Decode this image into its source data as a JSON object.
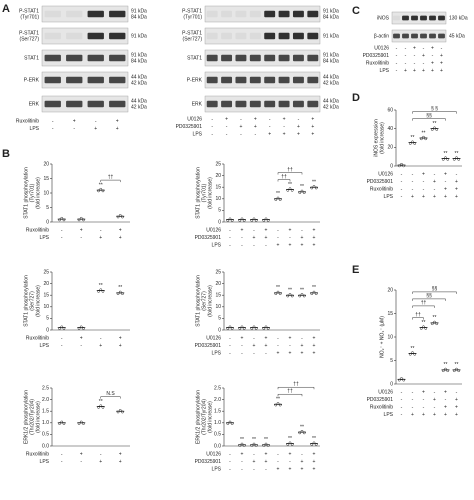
{
  "panel_labels": [
    "A",
    "B",
    "C",
    "D",
    "E"
  ],
  "blots": [
    {
      "rows": [
        {
          "label": [
            "P-STAT1",
            "(Tyr701)"
          ],
          "kda": [
            "91 kDa",
            "84 kDa"
          ]
        },
        {
          "label": [
            "P-STAT1",
            "(Ser727)"
          ],
          "kda": [
            "91 kDa"
          ]
        },
        {
          "label": [
            "STAT1"
          ],
          "kda": [
            "91 kDa",
            "84 kDa"
          ]
        },
        {
          "label": [
            "P-ERK"
          ],
          "kda": [
            "44 kDa",
            "42 kDa"
          ]
        },
        {
          "label": [
            "ERK"
          ],
          "kda": [
            "44 kDa",
            "42 kDa"
          ]
        }
      ],
      "conditions": [
        {
          "label": "Ruxolitinib",
          "signs": [
            "-",
            "+",
            "-",
            "+"
          ]
        },
        {
          "label": "LPS",
          "signs": [
            "-",
            "-",
            "+",
            "+"
          ]
        }
      ]
    },
    {
      "rows": [
        {
          "label": [
            "P-STAT1",
            "(Tyr701)"
          ],
          "kda": [
            "91 kDa",
            "84 kDa"
          ]
        },
        {
          "label": [
            "P-STAT1",
            "(Ser727)"
          ],
          "kda": [
            "91 kDa"
          ]
        },
        {
          "label": [
            "STAT1"
          ],
          "kda": [
            "91 kDa",
            "84 kDa"
          ]
        },
        {
          "label": [
            "P-ERK"
          ],
          "kda": [
            "44 kDa",
            "42 kDa"
          ]
        },
        {
          "label": [
            "ERK"
          ],
          "kda": [
            "44 kDa",
            "42 kDa"
          ]
        }
      ],
      "conditions": [
        {
          "label": "U0126",
          "signs": [
            "-",
            "+",
            "-",
            "+",
            "-",
            "+",
            "-",
            "+"
          ]
        },
        {
          "label": "PD0325901",
          "signs": [
            "-",
            "-",
            "+",
            "+",
            "-",
            "-",
            "+",
            "+"
          ]
        },
        {
          "label": "LPS",
          "signs": [
            "-",
            "-",
            "-",
            "-",
            "+",
            "+",
            "+",
            "+"
          ]
        }
      ]
    },
    {
      "rows": [
        {
          "label": [
            "iNOS"
          ],
          "kda": [
            "130 kDa"
          ]
        },
        {
          "label": [
            "β-actin"
          ],
          "kda": [
            "45 kDa"
          ]
        }
      ],
      "conditions": [
        {
          "label": "U0126",
          "signs": [
            "-",
            "-",
            "+",
            "-",
            "+",
            "-"
          ]
        },
        {
          "label": "PD0325901",
          "signs": [
            "-",
            "-",
            "-",
            "+",
            "-",
            "+"
          ]
        },
        {
          "label": "Ruxolitinib",
          "signs": [
            "-",
            "-",
            "-",
            "-",
            "+",
            "+"
          ]
        },
        {
          "label": "LPS",
          "signs": [
            "-",
            "+",
            "+",
            "+",
            "+",
            "+"
          ]
        }
      ]
    }
  ],
  "chart_data": [
    {
      "type": "dot",
      "y_label": [
        "STAT1 phosphorylation",
        "(Tyr701)",
        "(fold increase)"
      ],
      "ylim": [
        0,
        20
      ],
      "yticks": [
        0,
        5,
        10,
        15,
        20
      ],
      "values": [
        1,
        1,
        11,
        2
      ],
      "marks": [
        null,
        null,
        "**",
        null
      ],
      "brackets": [
        "††"
      ],
      "conditions": [
        {
          "label": "Ruxolitinib",
          "signs": [
            "-",
            "+",
            "-",
            "+"
          ]
        },
        {
          "label": "LPS",
          "signs": [
            "-",
            "-",
            "+",
            "+"
          ]
        }
      ]
    },
    {
      "type": "dot",
      "y_label": [
        "STAT1 phosphorylation",
        "(Tyr701)",
        "(fold increase)"
      ],
      "ylim": [
        0,
        25
      ],
      "yticks": [
        0,
        5,
        10,
        15,
        20,
        25
      ],
      "values": [
        1,
        1,
        1,
        1,
        10,
        14,
        13,
        15
      ],
      "marks": [
        null,
        null,
        null,
        null,
        "**",
        "**",
        "**",
        "**"
      ],
      "brackets": [
        "††",
        "††"
      ],
      "conditions": [
        {
          "label": "U0126",
          "signs": [
            "-",
            "+",
            "-",
            "+",
            "-",
            "+",
            "-",
            "+"
          ]
        },
        {
          "label": "PD0325901",
          "signs": [
            "-",
            "-",
            "+",
            "+",
            "-",
            "-",
            "+",
            "+"
          ]
        },
        {
          "label": "LPS",
          "signs": [
            "-",
            "-",
            "-",
            "-",
            "+",
            "+",
            "+",
            "+"
          ]
        }
      ]
    },
    {
      "type": "dot",
      "y_label": [
        "STAT1 phosphorylation",
        "(Ser727)",
        "(fold increase)"
      ],
      "ylim": [
        0,
        25
      ],
      "yticks": [
        0,
        5,
        10,
        15,
        20,
        25
      ],
      "values": [
        1,
        1,
        17,
        16
      ],
      "marks": [
        null,
        null,
        "**",
        "**"
      ],
      "brackets": [],
      "conditions": [
        {
          "label": "Ruxolitinib",
          "signs": [
            "-",
            "+",
            "-",
            "+"
          ]
        },
        {
          "label": "LPS",
          "signs": [
            "-",
            "-",
            "+",
            "+"
          ]
        }
      ]
    },
    {
      "type": "dot",
      "y_label": [
        "STAT1 phosphorylation",
        "(Ser727)",
        "(fold increase)"
      ],
      "ylim": [
        0,
        25
      ],
      "yticks": [
        0,
        5,
        10,
        15,
        20,
        25
      ],
      "values": [
        1,
        1,
        1,
        1,
        16,
        15,
        15,
        16
      ],
      "marks": [
        null,
        null,
        null,
        null,
        "**",
        "**",
        "**",
        "**"
      ],
      "brackets": [],
      "conditions": [
        {
          "label": "U0126",
          "signs": [
            "-",
            "+",
            "-",
            "+",
            "-",
            "+",
            "-",
            "+"
          ]
        },
        {
          "label": "PD0325901",
          "signs": [
            "-",
            "-",
            "+",
            "+",
            "-",
            "-",
            "+",
            "+"
          ]
        },
        {
          "label": "LPS",
          "signs": [
            "-",
            "-",
            "-",
            "-",
            "+",
            "+",
            "+",
            "+"
          ]
        }
      ]
    },
    {
      "type": "dot",
      "y_label": [
        "ERK1/2 phosphorylation",
        "(Thr202/Tyr204)",
        "(fold increase)"
      ],
      "ylim": [
        0,
        2.5
      ],
      "yticks": [
        {
          "value": 0,
          "label": "0.0"
        },
        0.5,
        {
          "value": 1,
          "label": "1.0"
        },
        1.5,
        {
          "value": 2,
          "label": "2.0"
        },
        2.5
      ],
      "values": [
        1,
        1,
        1.7,
        1.5
      ],
      "marks": [
        null,
        null,
        "**",
        null
      ],
      "brackets": [
        "N.S"
      ],
      "conditions": [
        {
          "label": "Ruxolitinib",
          "signs": [
            "-",
            "+",
            "-",
            "+"
          ]
        },
        {
          "label": "LPS",
          "signs": [
            "-",
            "-",
            "+",
            "+"
          ]
        }
      ]
    },
    {
      "type": "dot",
      "y_label": [
        "ERK1/2 phosphorylation",
        "(Thr202/Tyr204)",
        "(fold increase)"
      ],
      "ylim": [
        0,
        2.5
      ],
      "yticks": [
        {
          "value": 0,
          "label": "0.0"
        },
        0.5,
        {
          "value": 1,
          "label": "1.0"
        },
        1.5,
        {
          "value": 2,
          "label": "2.0"
        },
        2.5
      ],
      "values": [
        1,
        0.05,
        0.05,
        0.05,
        1.8,
        0.1,
        0.6,
        0.1
      ],
      "marks": [
        null,
        "**",
        "**",
        "**",
        "**",
        "**",
        "**",
        "**"
      ],
      "brackets": [
        "††",
        "††"
      ],
      "conditions": [
        {
          "label": "U0126",
          "signs": [
            "-",
            "+",
            "-",
            "+",
            "-",
            "+",
            "-",
            "+"
          ]
        },
        {
          "label": "PD0325901",
          "signs": [
            "-",
            "-",
            "+",
            "+",
            "-",
            "-",
            "+",
            "+"
          ]
        },
        {
          "label": "LPS",
          "signs": [
            "-",
            "-",
            "-",
            "-",
            "+",
            "+",
            "+",
            "+"
          ]
        }
      ]
    },
    {
      "type": "dot",
      "y_label": [
        "iNOS expression",
        "(fold increase)"
      ],
      "ylim": [
        0,
        60
      ],
      "yticks": [
        0,
        20,
        40,
        60
      ],
      "values": [
        1,
        25,
        30,
        40,
        8,
        8
      ],
      "marks": [
        null,
        "**",
        "**",
        "**",
        "**",
        "**"
      ],
      "brackets": [
        "§§",
        "§ §"
      ],
      "conditions": [
        {
          "label": "U0126",
          "signs": [
            "-",
            "-",
            "+",
            "-",
            "+",
            "-"
          ]
        },
        {
          "label": "PD0325901",
          "signs": [
            "-",
            "-",
            "-",
            "+",
            "-",
            "+"
          ]
        },
        {
          "label": "Ruxolitinib",
          "signs": [
            "-",
            "-",
            "-",
            "-",
            "+",
            "+"
          ]
        },
        {
          "label": "LPS",
          "signs": [
            "-",
            "+",
            "+",
            "+",
            "+",
            "+"
          ]
        }
      ]
    },
    {
      "type": "dot",
      "y_label": [
        "NO₂⁻ + NO₃⁻ (μM)"
      ],
      "ylim": [
        0,
        20
      ],
      "yticks": [
        0,
        5,
        10,
        15,
        20
      ],
      "values": [
        1,
        6.5,
        12,
        13,
        3,
        3
      ],
      "marks": [
        null,
        "**",
        "**",
        "**",
        "**",
        "**"
      ],
      "brackets": [
        "††",
        "††",
        "§§",
        "§§"
      ],
      "conditions": [
        {
          "label": "U0126",
          "signs": [
            "-",
            "-",
            "+",
            "-",
            "+",
            "-"
          ]
        },
        {
          "label": "PD0325901",
          "signs": [
            "-",
            "-",
            "-",
            "+",
            "-",
            "+"
          ]
        },
        {
          "label": "Ruxolitinib",
          "signs": [
            "-",
            "-",
            "-",
            "-",
            "+",
            "+"
          ]
        },
        {
          "label": "LPS",
          "signs": [
            "-",
            "+",
            "+",
            "+",
            "+",
            "+"
          ]
        }
      ]
    }
  ]
}
